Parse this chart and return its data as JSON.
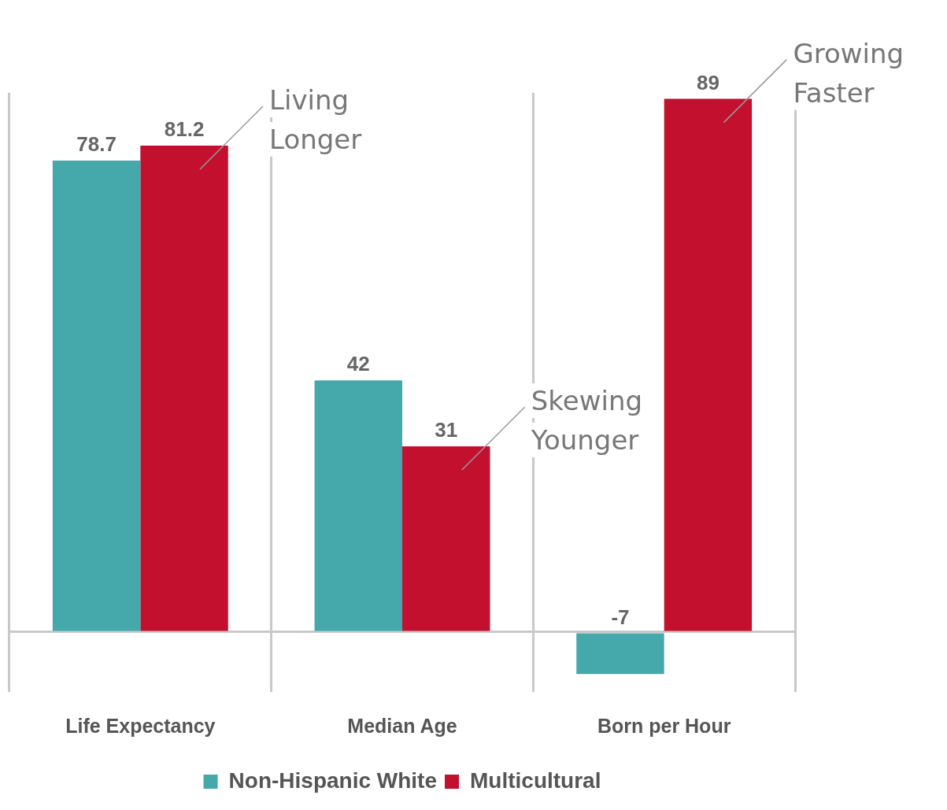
{
  "chart_data": {
    "type": "bar",
    "categories": [
      "Life Expectancy",
      "Median Age",
      "Born per Hour"
    ],
    "series": [
      {
        "name": "Non-Hispanic White",
        "color": "#45a8ab",
        "values": [
          78.7,
          42,
          -7
        ]
      },
      {
        "name": "Multicultural",
        "color": "#c2102e",
        "values": [
          81.2,
          31,
          89
        ]
      }
    ],
    "data_labels": true,
    "grid": "x",
    "legend": "bottom",
    "tick_labels": "x",
    "annotations": [
      "Living Longer",
      "Skewing Younger",
      "Growing Faster"
    ]
  }
}
